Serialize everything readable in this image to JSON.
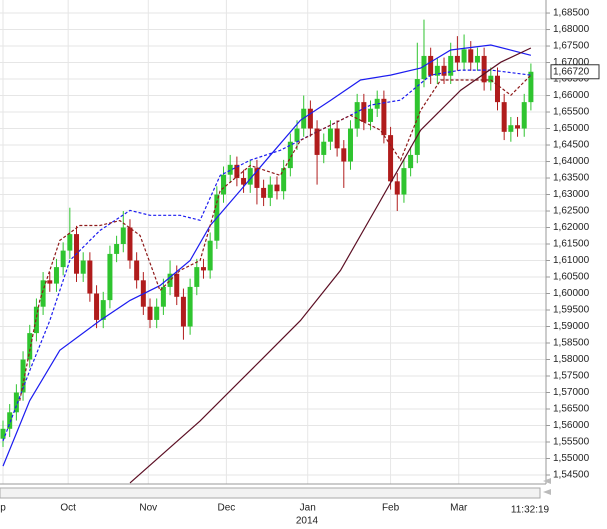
{
  "chart_data": {
    "type": "candlestick",
    "xlim": [
      -0.45,
      81.26
    ],
    "ylim": [
      1.54227,
      1.68895
    ],
    "grid": true,
    "up_color": "#2fc42f",
    "down_color": "#b01c1c",
    "yticks": [
      {
        "value": 1.545,
        "label": "1,54500"
      },
      {
        "value": 1.55,
        "label": "1,55000"
      },
      {
        "value": 1.555,
        "label": "1,55500"
      },
      {
        "value": 1.56,
        "label": "1,56000"
      },
      {
        "value": 1.565,
        "label": "1,56500"
      },
      {
        "value": 1.57,
        "label": "1,57000"
      },
      {
        "value": 1.575,
        "label": "1,57500"
      },
      {
        "value": 1.58,
        "label": "1,58000"
      },
      {
        "value": 1.585,
        "label": "1,58500"
      },
      {
        "value": 1.59,
        "label": "1,59000"
      },
      {
        "value": 1.595,
        "label": "1,59500"
      },
      {
        "value": 1.6,
        "label": "1,60000"
      },
      {
        "value": 1.605,
        "label": "1,60500"
      },
      {
        "value": 1.61,
        "label": "1,61000"
      },
      {
        "value": 1.615,
        "label": "1,61500"
      },
      {
        "value": 1.62,
        "label": "1,62000"
      },
      {
        "value": 1.625,
        "label": "1,62500"
      },
      {
        "value": 1.63,
        "label": "1,63000"
      },
      {
        "value": 1.635,
        "label": "1,63500"
      },
      {
        "value": 1.64,
        "label": "1,64000"
      },
      {
        "value": 1.645,
        "label": "1,64500"
      },
      {
        "value": 1.65,
        "label": "1,65000"
      },
      {
        "value": 1.655,
        "label": "1,65500"
      },
      {
        "value": 1.66,
        "label": "1,66000"
      },
      {
        "value": 1.665,
        "label": "1,66500"
      },
      {
        "value": 1.67,
        "label": "1,67000"
      },
      {
        "value": 1.675,
        "label": "1,67500"
      },
      {
        "value": 1.68,
        "label": "1,68000"
      },
      {
        "value": 1.685,
        "label": "1,68500"
      }
    ],
    "xticks": [
      {
        "value": 0,
        "label": "p"
      },
      {
        "value": 9.75,
        "label": "Oct"
      },
      {
        "value": 21.74,
        "label": "Nov"
      },
      {
        "value": 33.43,
        "label": "Dec"
      },
      {
        "value": 45.6,
        "label": "Jan"
      },
      {
        "value": 58,
        "label": "Feb"
      },
      {
        "value": 68.2,
        "label": "Mar"
      }
    ],
    "year_label": "2014",
    "time_label": "11:32:19",
    "last_price": {
      "value": 1.6672,
      "label": "1,66720"
    },
    "open": [
      1.556,
      1.559,
      1.564,
      1.57,
      1.58,
      1.588,
      1.596,
      1.604,
      1.603,
      1.608,
      1.613,
      1.618,
      1.606,
      1.61,
      1.6,
      1.592,
      1.598,
      1.612,
      1.615,
      1.62,
      1.61,
      1.604,
      1.596,
      1.592,
      1.596,
      1.602,
      1.606,
      1.599,
      1.59,
      1.602,
      1.608,
      1.607,
      1.616,
      1.63,
      1.636,
      1.639,
      1.635,
      1.633,
      1.638,
      1.632,
      1.629,
      1.633,
      1.631,
      1.638,
      1.646,
      1.65,
      1.656,
      1.65,
      1.642,
      1.646,
      1.65,
      1.644,
      1.64,
      1.65,
      1.658,
      1.652,
      1.656,
      1.659,
      1.648,
      1.634,
      1.63,
      1.638,
      1.642,
      1.665,
      1.672,
      1.666,
      1.669,
      1.666,
      1.672,
      1.67,
      1.674,
      1.67,
      1.672,
      1.664,
      1.666,
      1.658,
      1.649,
      1.651,
      1.65,
      1.658
    ],
    "high": [
      1.5615,
      1.5665,
      1.5725,
      1.5825,
      1.5905,
      1.5985,
      1.6065,
      1.6065,
      1.6105,
      1.6155,
      1.626,
      1.6205,
      1.6125,
      1.6125,
      1.6025,
      1.6005,
      1.6145,
      1.6175,
      1.625,
      1.6225,
      1.6125,
      1.6065,
      1.5985,
      1.5985,
      1.6045,
      1.61,
      1.6085,
      1.6015,
      1.6045,
      1.6105,
      1.6105,
      1.6185,
      1.6325,
      1.6385,
      1.642,
      1.6415,
      1.6375,
      1.6405,
      1.6405,
      1.6345,
      1.6355,
      1.6355,
      1.6405,
      1.6485,
      1.6525,
      1.66,
      1.6585,
      1.6525,
      1.6485,
      1.6525,
      1.6525,
      1.6465,
      1.6525,
      1.6605,
      1.6605,
      1.6585,
      1.6615,
      1.6615,
      1.6505,
      1.6365,
      1.6405,
      1.6445,
      1.676,
      1.683,
      1.6745,
      1.6715,
      1.6715,
      1.676,
      1.678,
      1.6785,
      1.6765,
      1.6745,
      1.6745,
      1.6685,
      1.6685,
      1.6605,
      1.6535,
      1.6535,
      1.6605,
      1.6697
    ],
    "low": [
      1.5535,
      1.5565,
      1.5615,
      1.5675,
      1.5775,
      1.5855,
      1.5935,
      1.6005,
      1.6005,
      1.6055,
      1.6105,
      1.6035,
      1.6035,
      1.5975,
      1.5895,
      1.5895,
      1.5955,
      1.6095,
      1.6125,
      1.6075,
      1.6015,
      1.5935,
      1.5895,
      1.5895,
      1.5935,
      1.5995,
      1.5965,
      1.586,
      1.5875,
      1.5995,
      1.6045,
      1.6045,
      1.6135,
      1.6275,
      1.6335,
      1.6325,
      1.6305,
      1.6305,
      1.627,
      1.6265,
      1.6265,
      1.6285,
      1.6285,
      1.6355,
      1.6435,
      1.6475,
      1.6475,
      1.633,
      1.6395,
      1.6435,
      1.6415,
      1.632,
      1.6375,
      1.6475,
      1.6495,
      1.6495,
      1.6535,
      1.6455,
      1.6315,
      1.625,
      1.6275,
      1.6355,
      1.6395,
      1.6625,
      1.6635,
      1.6635,
      1.6635,
      1.6635,
      1.6675,
      1.6675,
      1.6675,
      1.6675,
      1.6615,
      1.6615,
      1.6555,
      1.6465,
      1.646,
      1.6475,
      1.6475,
      1.6555
    ],
    "close": [
      1.559,
      1.564,
      1.57,
      1.58,
      1.588,
      1.596,
      1.604,
      1.603,
      1.608,
      1.613,
      1.618,
      1.606,
      1.61,
      1.6,
      1.592,
      1.598,
      1.612,
      1.615,
      1.62,
      1.61,
      1.604,
      1.596,
      1.592,
      1.596,
      1.602,
      1.606,
      1.599,
      1.59,
      1.602,
      1.608,
      1.607,
      1.616,
      1.63,
      1.636,
      1.639,
      1.635,
      1.633,
      1.638,
      1.632,
      1.629,
      1.633,
      1.631,
      1.638,
      1.646,
      1.65,
      1.656,
      1.65,
      1.642,
      1.646,
      1.65,
      1.644,
      1.64,
      1.65,
      1.658,
      1.652,
      1.656,
      1.659,
      1.648,
      1.634,
      1.63,
      1.638,
      1.642,
      1.665,
      1.672,
      1.666,
      1.669,
      1.666,
      1.672,
      1.67,
      1.674,
      1.67,
      1.672,
      1.664,
      1.666,
      1.658,
      1.649,
      1.651,
      1.65,
      1.658,
      1.6672
    ],
    "lines": [
      {
        "color": "#1c1cf0",
        "dash": false,
        "x": [
          0,
          4,
          8.5,
          14.5,
          19,
          23.5,
          28,
          31,
          35.5,
          40,
          44.5,
          49,
          53.5,
          58,
          62.5,
          67,
          73,
          79
        ],
        "values": [
          1.5477,
          1.5675,
          1.5828,
          1.5918,
          1.5979,
          1.6024,
          1.61,
          1.6206,
          1.6312,
          1.6419,
          1.6525,
          1.6585,
          1.6647,
          1.6662,
          1.6683,
          1.6738,
          1.6753,
          1.6722
        ]
      },
      {
        "color": "#1c1cf0",
        "dash": true,
        "x": [
          0,
          4,
          7,
          10,
          14.5,
          19,
          22,
          26.5,
          29.5,
          32.5,
          37,
          41.5,
          46,
          50.5,
          55,
          59.5,
          64,
          68.5,
          73,
          79
        ],
        "values": [
          1.5553,
          1.5766,
          1.5918,
          1.61,
          1.6191,
          1.6252,
          1.6237,
          1.6237,
          1.6222,
          1.6358,
          1.6404,
          1.6434,
          1.648,
          1.6525,
          1.6571,
          1.6586,
          1.6662,
          1.6677,
          1.6677,
          1.6662
        ]
      },
      {
        "color": "#8e1a1a",
        "dash": true,
        "x": [
          2.5,
          5.5,
          8.5,
          11.5,
          14.5,
          17.5,
          20.5,
          23.5,
          26.5,
          29.5,
          32.5,
          37,
          41.5,
          44.5,
          47.5,
          52,
          56.5,
          59.5,
          62.5,
          65.5,
          70,
          73,
          76,
          79
        ],
        "values": [
          1.5675,
          1.5979,
          1.6161,
          1.6206,
          1.6206,
          1.6221,
          1.6176,
          1.6009,
          1.607,
          1.61,
          1.6312,
          1.6388,
          1.6358,
          1.6464,
          1.6495,
          1.654,
          1.6495,
          1.6404,
          1.6555,
          1.6647,
          1.6647,
          1.6647,
          1.6601,
          1.6662
        ]
      },
      {
        "color": "#5c0f24",
        "dash": false,
        "x": [
          19,
          29.5,
          38.5,
          44.5,
          50.5,
          56.5,
          62.5,
          68.5,
          74.5,
          79
        ],
        "values": [
          1.5426,
          1.5614,
          1.5796,
          1.5918,
          1.607,
          1.6282,
          1.6495,
          1.6616,
          1.6701,
          1.6744
        ]
      }
    ]
  }
}
